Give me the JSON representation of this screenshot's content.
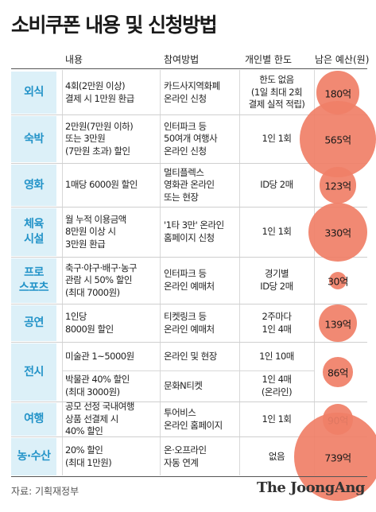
{
  "title": "소비쿠폰 내용 및 신청방법",
  "headers": {
    "content": "내용",
    "method": "참여방법",
    "limit": "개인별 한도",
    "budget": "남은 예산(원)"
  },
  "rows": [
    {
      "category": "외식",
      "content": "4회(2만원 이상)\n결제 시 1만원 환급",
      "method": "카드사지역화폐\n온라인 신청",
      "limit": "한도 없음\n(1일 최대 2회\n결제 실적 적립)",
      "budget": "180억",
      "budget_value": 180
    },
    {
      "category": "숙박",
      "content": "2만원(7만원 이하)\n또는 3만원\n(7만원 초과) 할인",
      "method": "인터파크 등\n50여개 여행사\n온라인 신청",
      "limit": "1인 1회",
      "budget": "565억",
      "budget_value": 565
    },
    {
      "category": "영화",
      "content": "1매당 6000원 할인",
      "method": "멀티플렉스\n영화관 온라인\n또는 현장",
      "limit": "ID당 2매",
      "budget": "123억",
      "budget_value": 123
    },
    {
      "category": "체육\n시설",
      "content": "월 누적 이용금액\n8만원 이상 시\n3만원 환급",
      "method": "'1타 3만' 온라인\n홈페이지 신청",
      "limit": "1인 1회",
      "budget": "330억",
      "budget_value": 330
    },
    {
      "category": "프로\n스포츠",
      "content": "축구·야구·배구·농구\n관람 시 50% 할인\n(최대 7000원)",
      "method": "인터파크 등\n온라인 예매처",
      "limit": "경기별\nID당 2매",
      "budget": "30억",
      "budget_value": 30
    },
    {
      "category": "공연",
      "content": "1인당\n8000원 할인",
      "method": "티켓링크 등\n온라인 예매처",
      "limit": "2주마다\n1인 4매",
      "budget": "139억",
      "budget_value": 139
    },
    {
      "category": "전시",
      "sub": [
        {
          "content": "미술관 1~5000원",
          "method": "온라인 및 현장",
          "limit": "1인 10매"
        },
        {
          "content": "박물관 40% 할인\n(최대 3000원)",
          "method": "문화N티켓",
          "limit": "1인 4매\n(온라인)"
        }
      ],
      "budget": "86억",
      "budget_value": 86
    },
    {
      "category": "여행",
      "content": "공모 선정 국내여행\n상품 선결제 시\n40% 할인",
      "method": "투어비스\n온라인 홈페이지",
      "limit": "1인 1회",
      "budget": "90억",
      "budget_value": 90
    },
    {
      "category": "농·수산",
      "content": "20% 할인\n(최대 1만원)",
      "method": "온·오프라인\n자동 연계",
      "limit": "없음",
      "budget": "739억",
      "budget_value": 739
    }
  ],
  "colors": {
    "category_bg": "#dcf0f8",
    "category_text": "#2393c8",
    "bubble": "#f07f67"
  },
  "source": "자료: 기획재정부",
  "logo": "The JoongAng"
}
